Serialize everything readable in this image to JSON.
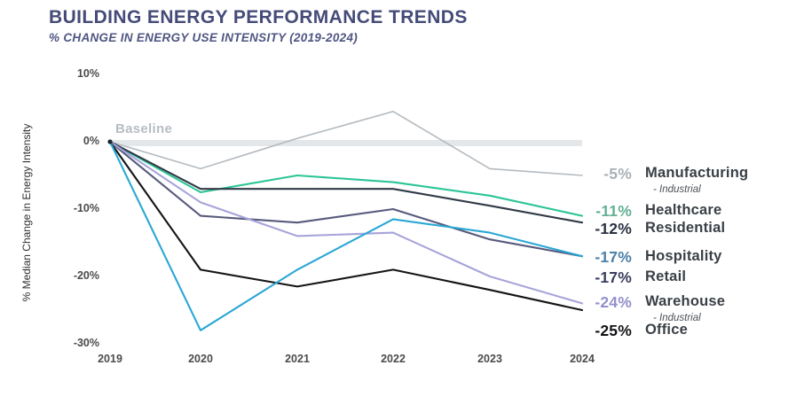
{
  "header": {
    "title": "BUILDING ENERGY PERFORMANCE TRENDS",
    "subtitle": "% CHANGE IN ENERGY USE INTENSITY (2019-2024)"
  },
  "chart_data": {
    "type": "line",
    "title": "BUILDING ENERGY PERFORMANCE TRENDS",
    "subtitle": "% CHANGE IN ENERGY USE INTENSITY (2019-2024)",
    "x": [
      2019,
      2020,
      2021,
      2022,
      2023,
      2024
    ],
    "xlabel": "",
    "ylabel": "% Median Change in Energy Intensity",
    "ylim": [
      -30,
      10
    ],
    "y_tick_values": [
      10,
      0,
      -10,
      -20,
      -30
    ],
    "y_tick_labels": [
      "10%",
      "0%",
      "-10%",
      "-20%",
      "-30%"
    ],
    "baseline_label": "Baseline",
    "baseline_value": 0,
    "baseline_band_color": "#e3e7ea",
    "grid": false,
    "legend_position": "right",
    "series": [
      {
        "name": "Manufacturing",
        "sub": "- Industrial",
        "final_label": "-5%",
        "color": "#b5bbc0",
        "label_color": "#a9b1b8",
        "values": [
          0,
          -4,
          0.5,
          4.5,
          -4,
          -5
        ]
      },
      {
        "name": "Healthcare",
        "final_label": "-11%",
        "color": "#2bc596",
        "label_color": "#63b093",
        "values": [
          0,
          -7.5,
          -5,
          -6,
          -8,
          -11
        ]
      },
      {
        "name": "Residential",
        "final_label": "-12%",
        "color": "#313a47",
        "label_color": "#2b3242",
        "values": [
          0,
          -7,
          -7,
          -7,
          -9.5,
          -12
        ]
      },
      {
        "name": "Hospitality",
        "final_label": "-17%",
        "color": "#2aa7d4",
        "label_color": "#4b80a8",
        "values": [
          0,
          -28,
          -19,
          -11.5,
          -13.5,
          -17
        ]
      },
      {
        "name": "Retail",
        "final_label": "-17%",
        "color": "#575a7c",
        "label_color": "#3a3e5e",
        "values": [
          0,
          -11,
          -12,
          -10,
          -14.5,
          -17
        ]
      },
      {
        "name": "Warehouse",
        "sub": "- Industrial",
        "final_label": "-24%",
        "color": "#a7a4da",
        "label_color": "#9390cc",
        "values": [
          0,
          -9,
          -14,
          -13.5,
          -20,
          -24
        ]
      },
      {
        "name": "Office",
        "final_label": "-25%",
        "color": "#151515",
        "label_color": "#141418",
        "values": [
          0,
          -19,
          -21.5,
          -19,
          -22,
          -25
        ]
      }
    ]
  }
}
